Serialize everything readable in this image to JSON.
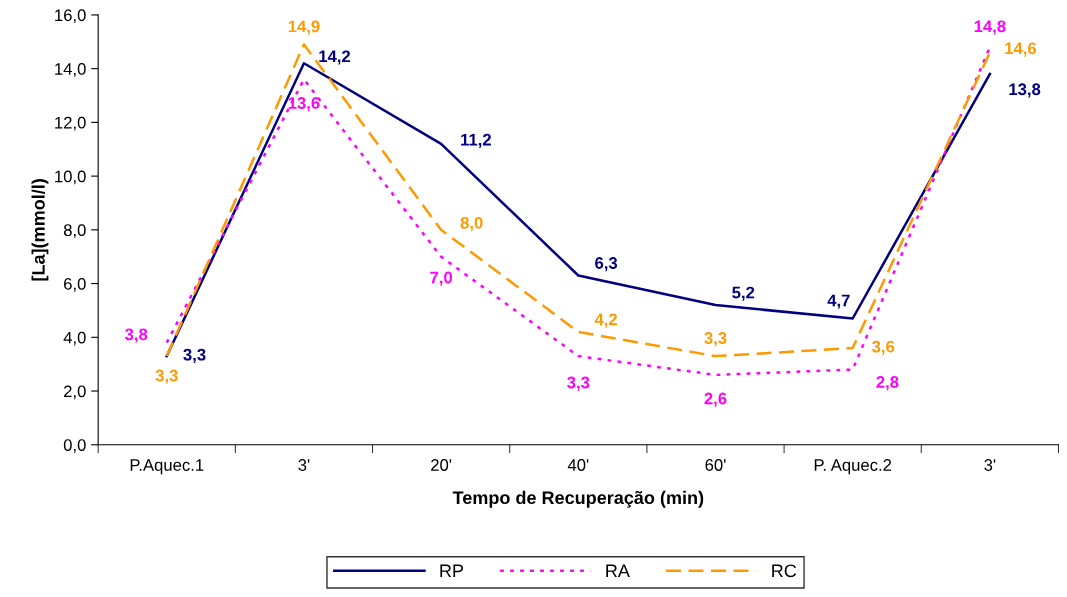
{
  "chart_data": {
    "type": "line",
    "xlabel": "Tempo de Recuperação (min)",
    "ylabel": "[La](mmol/l)",
    "categories": [
      "P.Aquec.1",
      "3'",
      "20'",
      "40'",
      "60'",
      "P. Aquec.2",
      "3'"
    ],
    "ylim": [
      0,
      16
    ],
    "yticks": [
      {
        "value": 0,
        "label": "0,0"
      },
      {
        "value": 2,
        "label": "2,0"
      },
      {
        "value": 4,
        "label": "4,0"
      },
      {
        "value": 6,
        "label": "6,0"
      },
      {
        "value": 8,
        "label": "8,0"
      },
      {
        "value": 10,
        "label": "10,0"
      },
      {
        "value": 12,
        "label": "12,0"
      },
      {
        "value": 14,
        "label": "14,0"
      },
      {
        "value": 16,
        "label": "16,0"
      }
    ],
    "grid": false,
    "legend": "bottom",
    "marker": "none",
    "series": [
      {
        "name": "RP",
        "color": "#000080",
        "line_style": "solid",
        "values": [
          3.3,
          14.2,
          11.2,
          6.3,
          5.2,
          4.7,
          13.8
        ],
        "value_labels": [
          "3,3",
          "14,2",
          "11,2",
          "6,3",
          "5,2",
          "4,7",
          "13,8"
        ]
      },
      {
        "name": "RA",
        "color": "#ff00ff",
        "line_style": "dotted",
        "values": [
          3.8,
          13.6,
          7.0,
          3.3,
          2.6,
          2.8,
          14.8
        ],
        "value_labels": [
          "3,8",
          "13,6",
          "7,0",
          "3,3",
          "2,6",
          "2,8",
          "14,8"
        ]
      },
      {
        "name": "RC",
        "color": "#ff9900",
        "line_style": "dashed",
        "values": [
          3.3,
          14.9,
          8.0,
          4.2,
          3.3,
          3.6,
          14.6
        ],
        "value_labels": [
          "3,3",
          "14,9",
          "8,0",
          "4,2",
          "3,3",
          "3,6",
          "14,6"
        ]
      }
    ]
  }
}
